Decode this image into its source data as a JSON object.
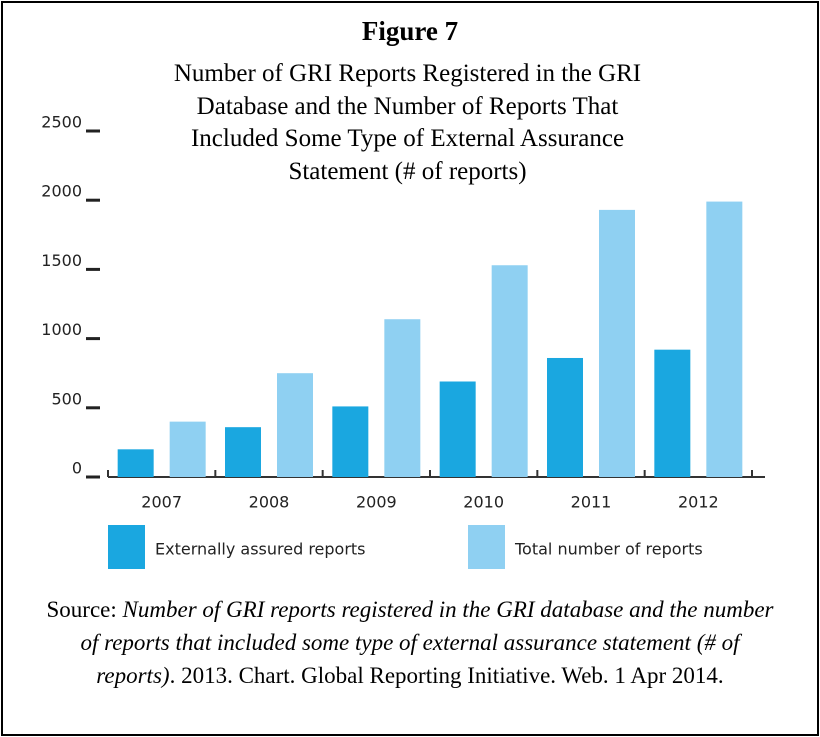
{
  "chart_data": {
    "type": "bar",
    "title": "Figure 7",
    "subtitle": "Number of GRI Reports Registered in the GRI Database and the Number of Reports That Included Some Type of External Assurance Statement (# of reports)",
    "categories": [
      "2007",
      "2008",
      "2009",
      "2010",
      "2011",
      "2012"
    ],
    "series": [
      {
        "name": "Externally assured reports",
        "color": "#1aa7e0",
        "values": [
          200,
          360,
          510,
          690,
          860,
          920
        ]
      },
      {
        "name": "Total number of reports",
        "color": "#8fd0f2",
        "values": [
          400,
          750,
          1140,
          1530,
          1930,
          1990
        ]
      }
    ],
    "ylim": [
      0,
      2500
    ],
    "yticks": [
      0,
      500,
      1000,
      1500,
      2000,
      2500
    ],
    "source": {
      "prefix": "Source: ",
      "work": "Number of GRI reports registered in the GRI database and the number of reports that included some type of external assurance statement (# of reports)",
      "suffix": ". 2013. Chart. Global Reporting Initiative. Web. 1 Apr 2014."
    }
  }
}
